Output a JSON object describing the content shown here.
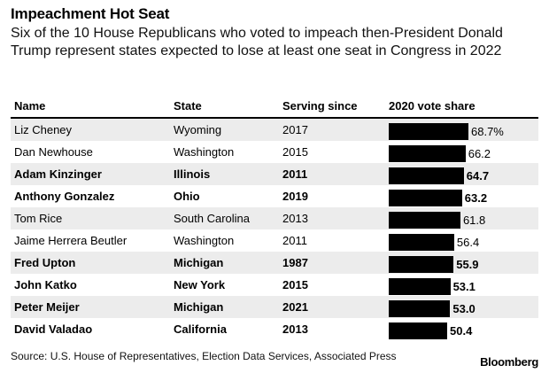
{
  "chart_data": {
    "type": "table",
    "title": "Impeachment Hot Seat",
    "subtitle": "Six of the 10 House Republicans who voted to impeach then-President Donald Trump represent states expected to lose at least one seat in Congress in 2022",
    "columns": [
      "Name",
      "State",
      "Serving since",
      "2020 vote share"
    ],
    "rows": [
      {
        "name": "Liz Cheney",
        "state": "Wyoming",
        "since": "2017",
        "vote": 68.7,
        "label": "68.7%",
        "bold": false
      },
      {
        "name": "Dan Newhouse",
        "state": "Washington",
        "since": "2015",
        "vote": 66.2,
        "label": "66.2",
        "bold": false
      },
      {
        "name": "Adam Kinzinger",
        "state": "Illinois",
        "since": "2011",
        "vote": 64.7,
        "label": "64.7",
        "bold": true
      },
      {
        "name": "Anthony Gonzalez",
        "state": "Ohio",
        "since": "2019",
        "vote": 63.2,
        "label": "63.2",
        "bold": true
      },
      {
        "name": "Tom Rice",
        "state": "South Carolina",
        "since": "2013",
        "vote": 61.8,
        "label": "61.8",
        "bold": false
      },
      {
        "name": "Jaime Herrera Beutler",
        "state": "Washington",
        "since": "2011",
        "vote": 56.4,
        "label": "56.4",
        "bold": false
      },
      {
        "name": "Fred Upton",
        "state": "Michigan",
        "since": "1987",
        "vote": 55.9,
        "label": "55.9",
        "bold": true
      },
      {
        "name": "John Katko",
        "state": "New York",
        "since": "2015",
        "vote": 53.1,
        "label": "53.1",
        "bold": true
      },
      {
        "name": "Peter Meijer",
        "state": "Michigan",
        "since": "2021",
        "vote": 53.0,
        "label": "53.0",
        "bold": true
      },
      {
        "name": "David Valadao",
        "state": "California",
        "since": "2013",
        "vote": 50.4,
        "label": "50.4",
        "bold": true
      }
    ],
    "bar_color": "#000000",
    "shade_color": "#ececec"
  },
  "source": "Source: U.S. House of Representatives, Election Data Services, Associated Press",
  "brand": "Bloomberg"
}
